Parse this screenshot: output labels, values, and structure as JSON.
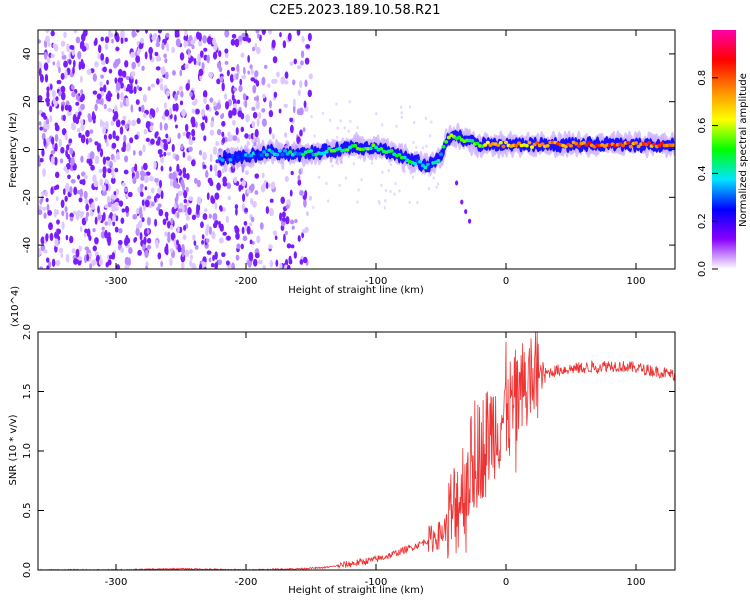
{
  "title": "C2E5.2023.189.10.58.R21",
  "colors": {
    "snr_line": "#ee3333",
    "spectrum_core": "#1a10ff",
    "spectrum_noise": "#8a2cff",
    "axis": "#000000"
  },
  "chart_data": [
    {
      "type": "heatmap",
      "title": "C2E5.2023.189.10.58.R21",
      "xlabel": "Height of straight line (km)",
      "ylabel": "Frequency (Hz)",
      "xlim": [
        -360,
        130
      ],
      "ylim": [
        -50,
        50
      ],
      "xticks": [
        -300,
        -200,
        -100,
        0,
        100
      ],
      "xtick_labels": [
        "-300",
        "-200",
        "-100",
        "0",
        "100"
      ],
      "yticks": [
        -40,
        -20,
        0,
        20,
        40
      ],
      "ytick_labels": [
        "-40",
        "-20",
        "0",
        "20",
        "40"
      ],
      "grid": false,
      "colorbar": {
        "label": "Normalized spectral amplitude",
        "range": [
          0.0,
          1.0
        ],
        "ticks": [
          0.0,
          0.2,
          0.4,
          0.6,
          0.8
        ],
        "tick_labels": [
          "0.0",
          "0.2",
          "0.4",
          "0.6",
          "0.8"
        ],
        "colormap": [
          "#ffffff",
          "#8800ff",
          "#0000ff",
          "#00e5ff",
          "#00ff00",
          "#ffff00",
          "#ff8800",
          "#ff0000",
          "#ff00aa"
        ]
      },
      "signal_trace": {
        "x": [
          -220,
          -200,
          -180,
          -160,
          -140,
          -120,
          -100,
          -90,
          -80,
          -70,
          -60,
          -50,
          -45,
          -40,
          -30,
          -20,
          0,
          20,
          40,
          60,
          80,
          100,
          120,
          130
        ],
        "y": [
          -4,
          -3,
          -1,
          -2,
          -1,
          1,
          1,
          -1,
          -3,
          -5,
          -7,
          -3,
          5,
          6,
          4,
          2,
          2,
          2,
          2,
          2,
          2,
          2,
          2,
          2
        ],
        "amplitude": [
          0.25,
          0.3,
          0.4,
          0.4,
          0.45,
          0.45,
          0.5,
          0.45,
          0.45,
          0.4,
          0.35,
          0.4,
          0.5,
          0.55,
          0.5,
          0.6,
          0.7,
          0.7,
          0.75,
          0.8,
          0.8,
          0.75,
          0.8,
          0.8
        ]
      },
      "noise_region_x": [
        -360,
        -150
      ]
    },
    {
      "type": "line",
      "xlabel": "Height of straight line (km)",
      "ylabel": "SNR (10 * v/v)",
      "y_multiplier": "(x10^4)",
      "xlim": [
        -360,
        130
      ],
      "ylim": [
        0.0,
        2.0
      ],
      "xticks": [
        -300,
        -200,
        -100,
        0,
        100
      ],
      "xtick_labels": [
        "-300",
        "-200",
        "-100",
        "0",
        "100"
      ],
      "yticks": [
        0.0,
        0.5,
        1.0,
        1.5,
        2.0
      ],
      "ytick_labels": [
        "0.0",
        "0.5",
        "1.0",
        "1.5",
        "2.0"
      ],
      "grid": false,
      "series": [
        {
          "x": [
            -360,
            -300,
            -250,
            -200,
            -160,
            -140,
            -120,
            -110,
            -100,
            -90,
            -80,
            -70,
            -60,
            -50,
            -45,
            -40,
            -35,
            -30,
            -25,
            -20,
            -15,
            -10,
            -5,
            0,
            10,
            20,
            30,
            40,
            60,
            80,
            100,
            120,
            130
          ],
          "y": [
            0.0,
            0.0,
            0.01,
            0.0,
            0.01,
            0.02,
            0.05,
            0.07,
            0.09,
            0.12,
            0.16,
            0.2,
            0.25,
            0.3,
            0.38,
            0.5,
            0.65,
            0.8,
            0.9,
            1.0,
            1.1,
            1.2,
            1.25,
            1.3,
            1.45,
            1.58,
            1.65,
            1.68,
            1.7,
            1.72,
            1.7,
            1.66,
            1.64
          ]
        }
      ]
    }
  ]
}
